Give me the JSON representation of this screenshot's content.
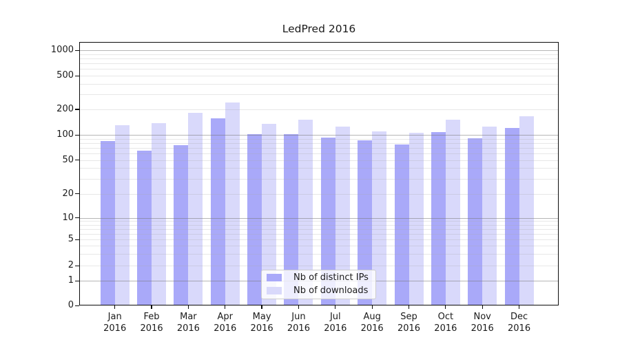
{
  "title": "LedPred 2016",
  "colors": {
    "ips": "#a9a9f9",
    "downloads": "#d9d9fb",
    "axis": "#0a0a0a",
    "grid_major": "#8c8c8c",
    "grid_minor": "#d4d4d4",
    "legend_border": "#cccccc",
    "background": "#ffffff"
  },
  "legend": {
    "items": [
      {
        "label": "Nb of distinct IPs",
        "color_key": "ips"
      },
      {
        "label": "Nb of downloads",
        "color_key": "downloads"
      }
    ]
  },
  "y_axis": {
    "tick_values": [
      1000,
      500,
      200,
      100,
      50,
      20,
      10,
      5,
      2,
      1,
      0
    ],
    "tick_labels": [
      "1000",
      "500",
      "200",
      "100",
      "50",
      "20",
      "10",
      "5",
      "2",
      "1",
      "0"
    ]
  },
  "x_axis": {
    "year": "2016",
    "months": [
      "Jan",
      "Feb",
      "Mar",
      "Apr",
      "May",
      "Jun",
      "Jul",
      "Aug",
      "Sep",
      "Oct",
      "Nov",
      "Dec"
    ]
  },
  "chart_data": {
    "type": "bar",
    "title": "LedPred 2016",
    "categories": [
      "Jan 2016",
      "Feb 2016",
      "Mar 2016",
      "Apr 2016",
      "May 2016",
      "Jun 2016",
      "Jul 2016",
      "Aug 2016",
      "Sep 2016",
      "Oct 2016",
      "Nov 2016",
      "Dec 2016"
    ],
    "series": [
      {
        "name": "Nb of distinct IPs",
        "values": [
          84,
          65,
          75,
          157,
          101,
          102,
          93,
          86,
          77,
          108,
          91,
          121
        ]
      },
      {
        "name": "Nb of downloads",
        "values": [
          129,
          136,
          182,
          242,
          134,
          150,
          125,
          109,
          105,
          152,
          126,
          164
        ]
      }
    ],
    "xlabel": "",
    "ylabel": "",
    "yscale": "symlog",
    "yticks": [
      0,
      1,
      2,
      5,
      10,
      20,
      50,
      100,
      200,
      500,
      1000
    ],
    "ylim": [
      0,
      1270
    ],
    "grid": true,
    "grid_over_bars": true,
    "legend_position": "lower center"
  }
}
